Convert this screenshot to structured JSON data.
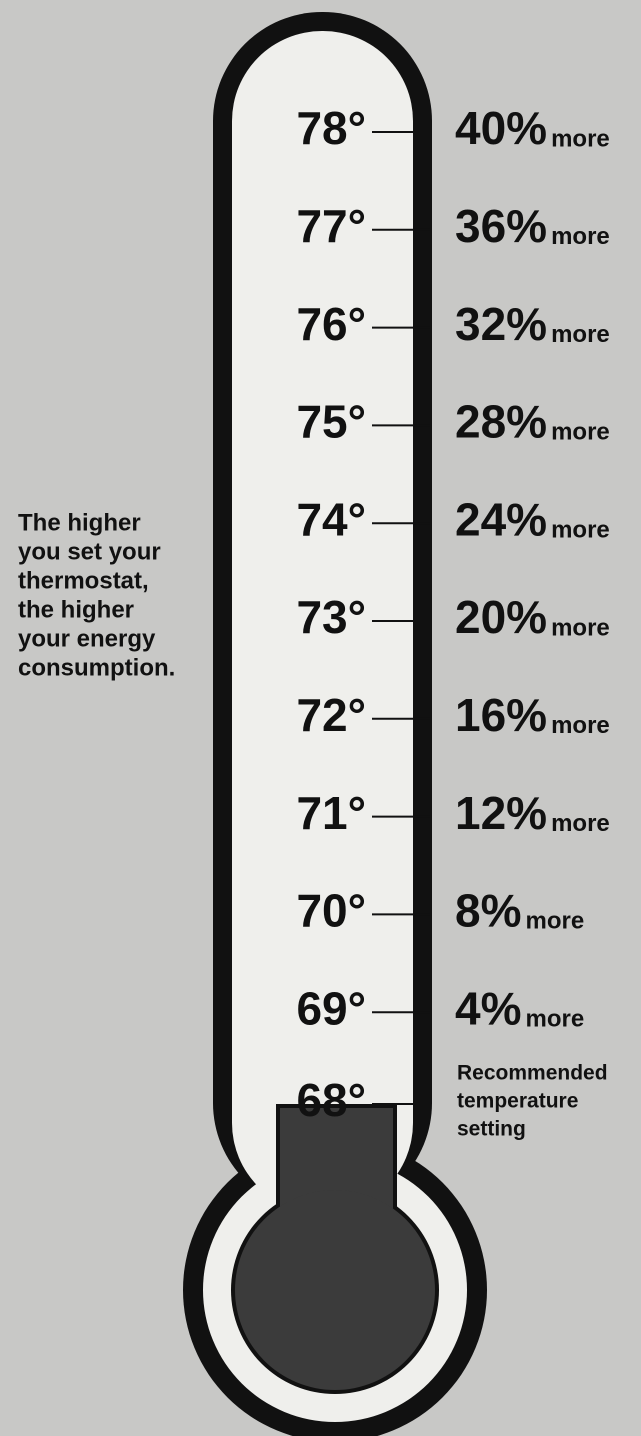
{
  "side_text": [
    "The higher",
    "you set your",
    "thermostat,",
    "the higher",
    "your energy",
    "consumption."
  ],
  "levels": [
    {
      "temperature": "78°",
      "percent": "40%",
      "suffix": "more"
    },
    {
      "temperature": "77°",
      "percent": "36%",
      "suffix": "more"
    },
    {
      "temperature": "76°",
      "percent": "32%",
      "suffix": "more"
    },
    {
      "temperature": "75°",
      "percent": "28%",
      "suffix": "more"
    },
    {
      "temperature": "74°",
      "percent": "24%",
      "suffix": "more"
    },
    {
      "temperature": "73°",
      "percent": "20%",
      "suffix": "more"
    },
    {
      "temperature": "72°",
      "percent": "16%",
      "suffix": "more"
    },
    {
      "temperature": "71°",
      "percent": "12%",
      "suffix": "more"
    },
    {
      "temperature": "70°",
      "percent": "8%",
      "suffix": "more"
    },
    {
      "temperature": "69°",
      "percent": "4%",
      "suffix": "more"
    }
  ],
  "recommended": {
    "temperature": "68°",
    "note": [
      "Recommended",
      "temperature",
      "setting"
    ]
  }
}
